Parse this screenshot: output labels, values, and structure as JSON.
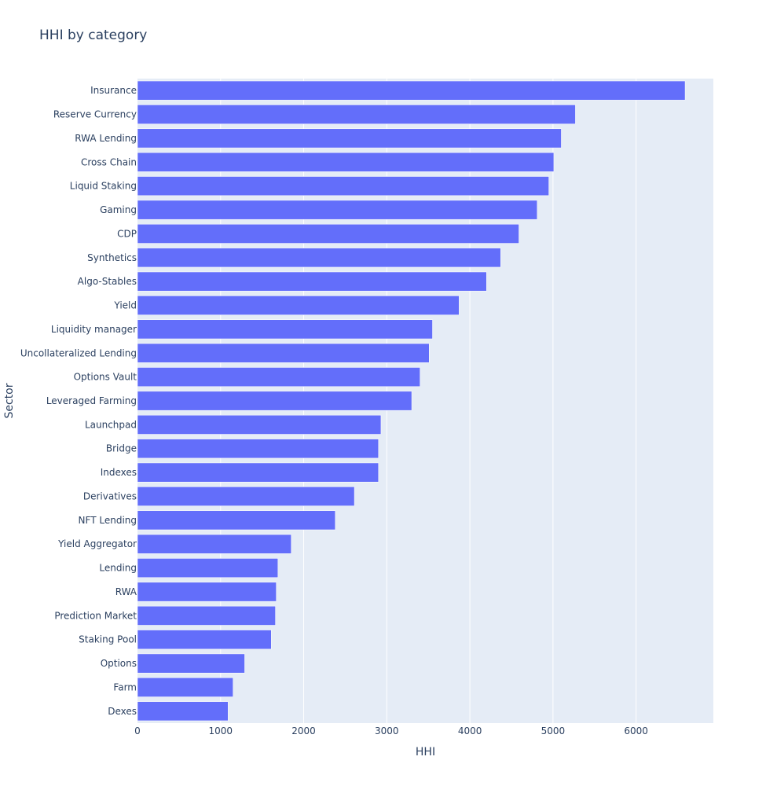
{
  "chart_data": {
    "type": "bar",
    "orientation": "horizontal",
    "title": "HHI by category",
    "xlabel": "HHI",
    "ylabel": "Sector",
    "xlim": [
      0,
      6930
    ],
    "x_ticks": [
      0,
      1000,
      2000,
      3000,
      4000,
      5000,
      6000
    ],
    "grid": true,
    "categories": [
      "Insurance",
      "Reserve Currency",
      "RWA Lending",
      "Cross Chain",
      "Liquid Staking",
      "Gaming",
      "CDP",
      "Synthetics",
      "Algo-Stables",
      "Yield",
      "Liquidity manager",
      "Uncollateralized Lending",
      "Options Vault",
      "Leveraged Farming",
      "Launchpad",
      "Bridge",
      "Indexes",
      "Derivatives",
      "NFT Lending",
      "Yield Aggregator",
      "Lending",
      "RWA",
      "Prediction Market",
      "Staking Pool",
      "Options",
      "Farm",
      "Dexes"
    ],
    "values": [
      6590,
      5270,
      5100,
      5010,
      4950,
      4810,
      4590,
      4370,
      4200,
      3870,
      3550,
      3510,
      3400,
      3300,
      2930,
      2900,
      2900,
      2610,
      2380,
      1850,
      1690,
      1670,
      1660,
      1610,
      1290,
      1150,
      1090
    ],
    "bar_color": "#636efa",
    "plot_background": "#e5ecf6"
  }
}
